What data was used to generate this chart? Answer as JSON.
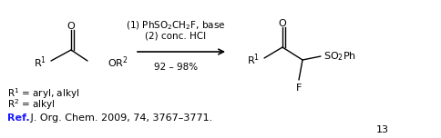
{
  "fig_width": 4.84,
  "fig_height": 1.52,
  "dpi": 100,
  "background": "#ffffff",
  "fontsize_main": 8,
  "fontsize_conditions": 7.5,
  "fontsize_footnote": 7.5,
  "fontsize_ref": 8,
  "fontsize_page": 8,
  "ref_color": "#1a1aff",
  "page_num": "13",
  "conditions_line1": "(1) PhSO$_2$CH$_2$F, base",
  "conditions_line2": "(2) conc. HCl",
  "conditions_line3": "92 – 98%",
  "footnote_r1": "R$^1$ = aryl, alkyl",
  "footnote_r2": "R$^2$ = alkyl",
  "ref_bold": "Ref.",
  "ref_rest": " J. Org. Chem. 2009, 74, 3767–3771."
}
